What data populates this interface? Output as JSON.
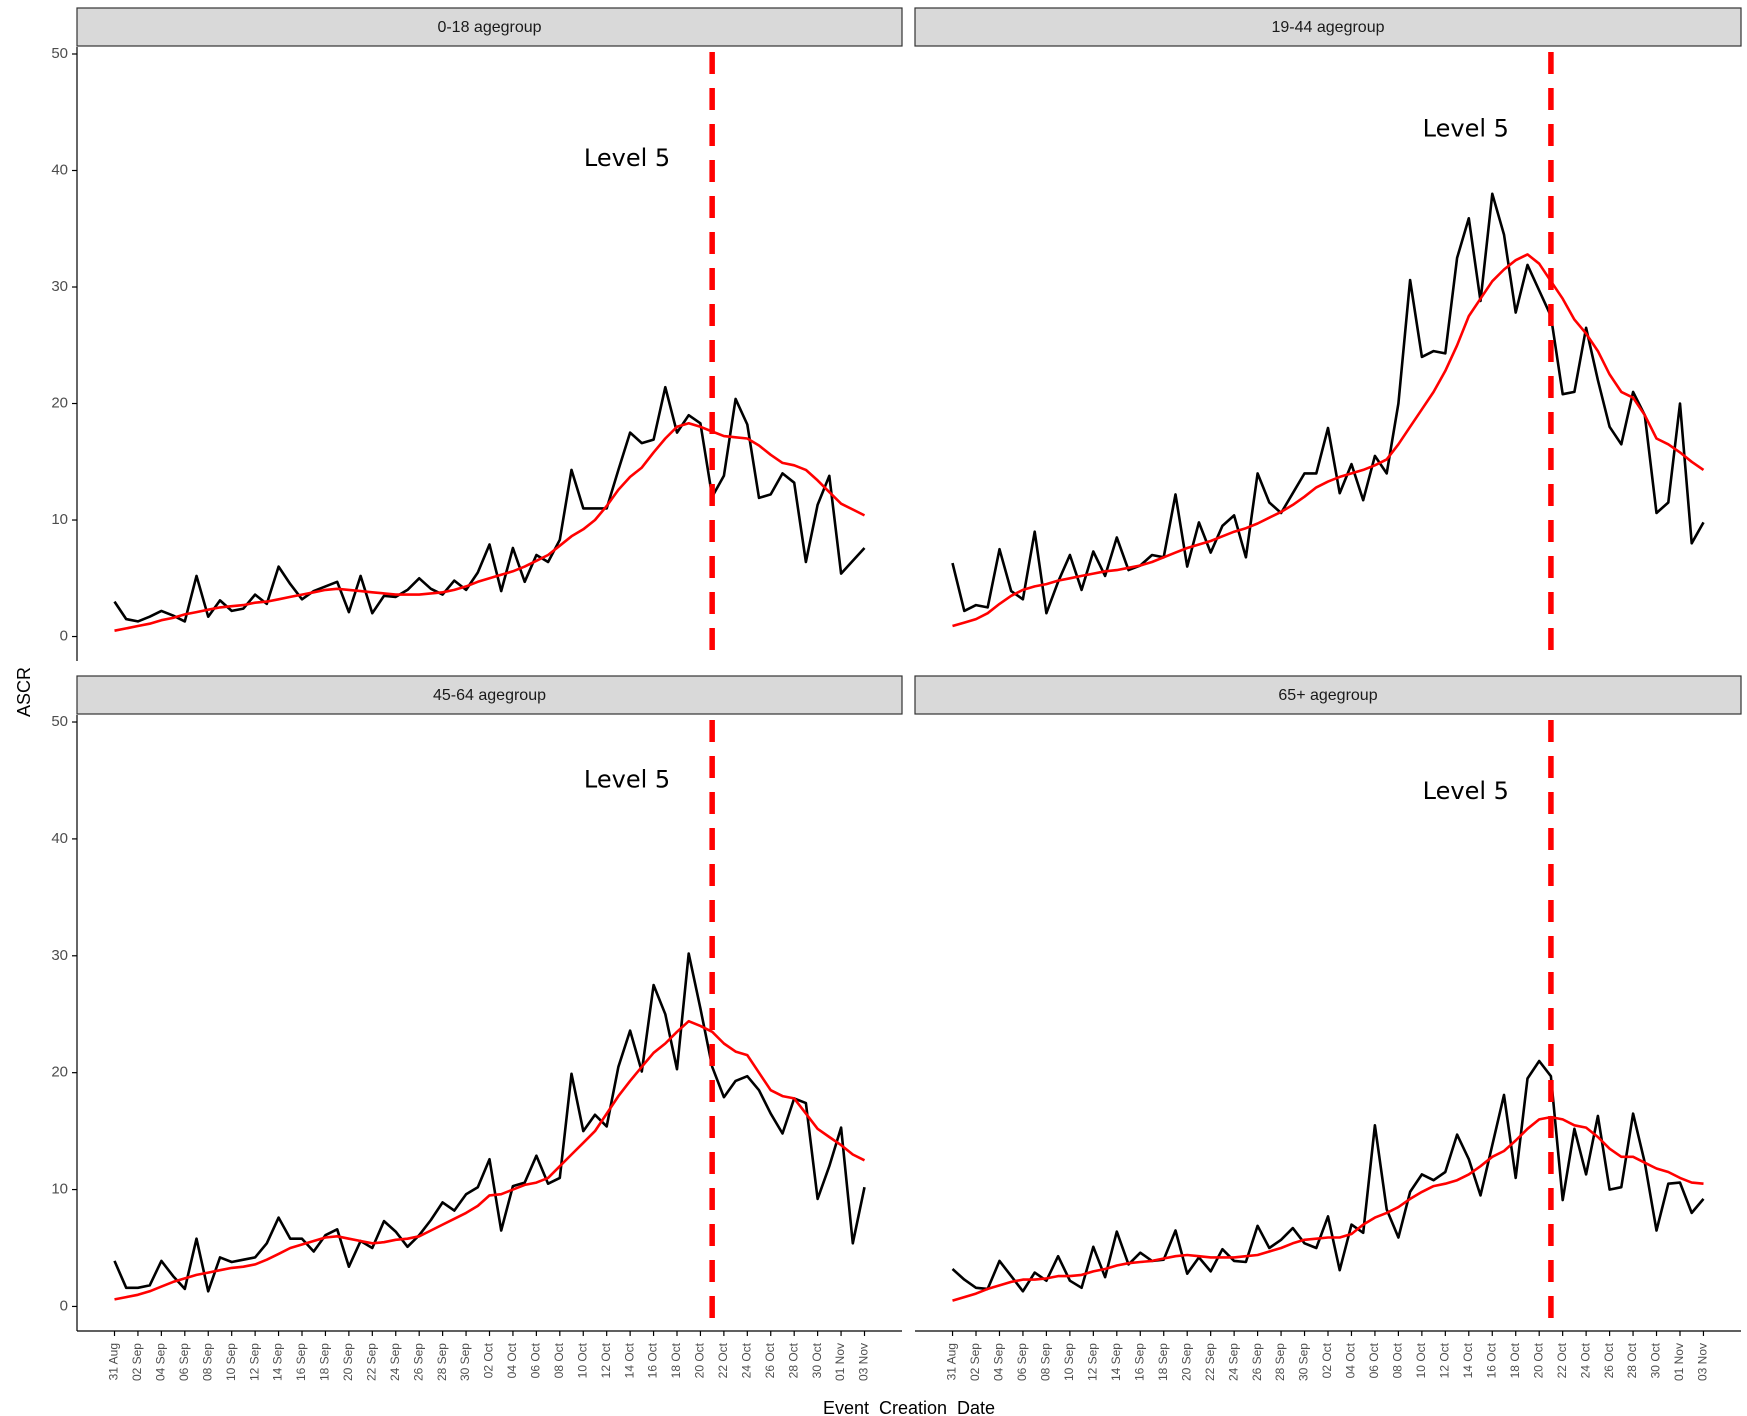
{
  "ylabel": "ASCR",
  "xlabel": "Event_Creation_Date",
  "chart_data": [
    {
      "type": "line",
      "title": "0-18 agegroup",
      "ylim": [
        -2.1,
        50.6
      ],
      "yticks": [
        0,
        10,
        20,
        30,
        40,
        50
      ],
      "vline_x": 51,
      "vline_color": "#ff0000",
      "annotation": {
        "text": "Level 5",
        "y": 41
      },
      "series": [
        {
          "color": "#000000",
          "values": [
            3.0,
            1.5,
            1.3,
            1.7,
            2.2,
            1.8,
            1.3,
            5.2,
            1.7,
            3.1,
            2.2,
            2.4,
            3.6,
            2.8,
            6.0,
            4.5,
            3.2,
            3.9,
            4.3,
            4.7,
            2.1,
            5.2,
            2.0,
            3.5,
            3.4,
            4.0,
            5.0,
            4.1,
            3.6,
            4.8,
            4.0,
            5.5,
            7.9,
            3.9,
            7.6,
            4.7,
            7.0,
            6.4,
            8.3,
            14.3,
            11.0,
            11.0,
            11.0,
            14.3,
            17.5,
            16.6,
            16.9,
            21.4,
            17.5,
            19.0,
            18.3,
            12.0,
            13.8,
            20.4,
            18.2,
            11.9,
            12.2,
            14.0,
            13.2,
            6.4,
            11.3,
            13.8,
            5.4,
            6.5,
            7.6
          ]
        },
        {
          "color": "#ff0000",
          "values": [
            0.5,
            0.7,
            0.9,
            1.1,
            1.4,
            1.6,
            1.9,
            2.1,
            2.3,
            2.5,
            2.6,
            2.7,
            2.9,
            3.0,
            3.2,
            3.4,
            3.6,
            3.8,
            4.0,
            4.1,
            4.0,
            3.9,
            3.8,
            3.7,
            3.6,
            3.6,
            3.6,
            3.7,
            3.8,
            4.0,
            4.3,
            4.7,
            5.0,
            5.3,
            5.6,
            6.0,
            6.5,
            7.0,
            7.8,
            8.6,
            9.2,
            10.0,
            11.2,
            12.6,
            13.7,
            14.5,
            15.8,
            17.0,
            18.0,
            18.3,
            18.0,
            17.6,
            17.2,
            17.1,
            17.0,
            16.4,
            15.6,
            14.9,
            14.7,
            14.3,
            13.4,
            12.4,
            11.4,
            10.9,
            10.4
          ]
        }
      ]
    },
    {
      "type": "line",
      "title": "19-44 agegroup",
      "ylim": [
        -2.1,
        50.6
      ],
      "vline_x": 51,
      "vline_color": "#ff0000",
      "annotation": {
        "text": "Level 5",
        "y": 43.5
      },
      "series": [
        {
          "color": "#000000",
          "values": [
            6.3,
            2.2,
            2.7,
            2.5,
            7.5,
            3.9,
            3.2,
            9.0,
            2.0,
            4.7,
            7.0,
            4.0,
            7.3,
            5.2,
            8.5,
            5.7,
            6.1,
            7.0,
            6.8,
            12.2,
            6.0,
            9.8,
            7.2,
            9.5,
            10.4,
            6.8,
            14.0,
            11.5,
            10.6,
            12.3,
            14.0,
            14.0,
            17.9,
            12.3,
            14.8,
            11.7,
            15.5,
            14.0,
            20.0,
            30.6,
            24.0,
            24.5,
            24.3,
            32.5,
            35.9,
            28.8,
            38.0,
            34.5,
            27.8,
            31.9,
            29.7,
            27.5,
            20.8,
            21.0,
            26.5,
            22.0,
            18.0,
            16.5,
            21.0,
            19.0,
            10.6,
            11.5,
            20.0,
            8.0,
            9.8
          ]
        },
        {
          "color": "#ff0000",
          "values": [
            0.9,
            1.2,
            1.5,
            2.0,
            2.8,
            3.5,
            4.0,
            4.3,
            4.5,
            4.8,
            5.0,
            5.2,
            5.4,
            5.6,
            5.7,
            5.9,
            6.1,
            6.4,
            6.8,
            7.2,
            7.6,
            7.9,
            8.2,
            8.6,
            9.0,
            9.3,
            9.7,
            10.2,
            10.7,
            11.3,
            12.0,
            12.8,
            13.3,
            13.7,
            14.0,
            14.3,
            14.7,
            15.2,
            16.5,
            18.0,
            19.5,
            21.0,
            22.8,
            25.0,
            27.5,
            29.0,
            30.5,
            31.5,
            32.3,
            32.8,
            32.0,
            30.5,
            29.0,
            27.2,
            26.0,
            24.5,
            22.5,
            21.0,
            20.5,
            19.0,
            17.0,
            16.5,
            15.8,
            15.0,
            14.3
          ]
        }
      ]
    },
    {
      "type": "line",
      "title": "45-64 agegroup",
      "ylim": [
        -2.1,
        50.6
      ],
      "yticks": [
        0,
        10,
        20,
        30,
        40,
        50
      ],
      "categories": [
        "31 Aug",
        null,
        "02 Sep",
        null,
        "04 Sep",
        null,
        "06 Sep",
        null,
        "08 Sep",
        null,
        "10 Sep",
        null,
        "12 Sep",
        null,
        "14 Sep",
        null,
        "16 Sep",
        null,
        "18 Sep",
        null,
        "20 Sep",
        null,
        "22 Sep",
        null,
        "24 Sep",
        null,
        "26 Sep",
        null,
        "28 Sep",
        null,
        "30 Sep",
        null,
        "02 Oct",
        null,
        "04 Oct",
        null,
        "06 Oct",
        null,
        "08 Oct",
        null,
        "10 Oct",
        null,
        "12 Oct",
        null,
        "14 Oct",
        null,
        "16 Oct",
        null,
        "18 Oct",
        null,
        "20 Oct",
        null,
        "22 Oct",
        null,
        "24 Oct",
        null,
        "26 Oct",
        null,
        "28 Oct",
        null,
        "30 Oct",
        null,
        "01 Nov",
        null,
        "03 Nov"
      ],
      "vline_x": 51,
      "vline_color": "#ff0000",
      "annotation": {
        "text": "Level 5",
        "y": 45
      },
      "series": [
        {
          "color": "#000000",
          "values": [
            3.9,
            1.6,
            1.6,
            1.8,
            3.9,
            2.6,
            1.5,
            5.8,
            1.3,
            4.2,
            3.8,
            4.0,
            4.2,
            5.4,
            7.6,
            5.8,
            5.8,
            4.7,
            6.1,
            6.6,
            3.4,
            5.6,
            5.0,
            7.3,
            6.4,
            5.1,
            6.1,
            7.4,
            8.9,
            8.2,
            9.6,
            10.2,
            12.6,
            6.5,
            10.3,
            10.6,
            12.9,
            10.5,
            11.0,
            19.9,
            15.0,
            16.4,
            15.4,
            20.5,
            23.6,
            20.1,
            27.5,
            25.0,
            20.3,
            30.2,
            25.5,
            20.5,
            17.9,
            19.3,
            19.7,
            18.5,
            16.5,
            14.8,
            17.8,
            17.4,
            9.2,
            12.0,
            15.3,
            5.4,
            10.2
          ]
        },
        {
          "color": "#ff0000",
          "values": [
            0.6,
            0.8,
            1.0,
            1.3,
            1.7,
            2.1,
            2.4,
            2.7,
            2.9,
            3.1,
            3.3,
            3.4,
            3.6,
            4.0,
            4.5,
            5.0,
            5.3,
            5.6,
            5.9,
            6.0,
            5.8,
            5.6,
            5.4,
            5.5,
            5.7,
            5.8,
            6.0,
            6.5,
            7.0,
            7.5,
            8.0,
            8.6,
            9.5,
            9.6,
            10.0,
            10.4,
            10.6,
            11.0,
            12.0,
            13.0,
            14.0,
            15.0,
            16.5,
            18.0,
            19.3,
            20.5,
            21.7,
            22.5,
            23.5,
            24.4,
            24.0,
            23.5,
            22.5,
            21.8,
            21.5,
            20.0,
            18.5,
            18.0,
            17.8,
            16.5,
            15.2,
            14.5,
            13.8,
            13.0,
            12.5
          ]
        }
      ]
    },
    {
      "type": "line",
      "title": "65+ agegroup",
      "ylim": [
        -2.1,
        50.6
      ],
      "categories": [
        "31 Aug",
        null,
        "02 Sep",
        null,
        "04 Sep",
        null,
        "06 Sep",
        null,
        "08 Sep",
        null,
        "10 Sep",
        null,
        "12 Sep",
        null,
        "14 Sep",
        null,
        "16 Sep",
        null,
        "18 Sep",
        null,
        "20 Sep",
        null,
        "22 Sep",
        null,
        "24 Sep",
        null,
        "26 Sep",
        null,
        "28 Sep",
        null,
        "30 Sep",
        null,
        "02 Oct",
        null,
        "04 Oct",
        null,
        "06 Oct",
        null,
        "08 Oct",
        null,
        "10 Oct",
        null,
        "12 Oct",
        null,
        "14 Oct",
        null,
        "16 Oct",
        null,
        "18 Oct",
        null,
        "20 Oct",
        null,
        "22 Oct",
        null,
        "24 Oct",
        null,
        "26 Oct",
        null,
        "28 Oct",
        null,
        "30 Oct",
        null,
        "01 Nov",
        null,
        "03 Nov"
      ],
      "vline_x": 51,
      "vline_color": "#ff0000",
      "annotation": {
        "text": "Level 5",
        "y": 44
      },
      "series": [
        {
          "color": "#000000",
          "values": [
            3.2,
            2.3,
            1.6,
            1.5,
            3.9,
            2.6,
            1.3,
            2.9,
            2.2,
            4.3,
            2.2,
            1.6,
            5.1,
            2.5,
            6.4,
            3.6,
            4.6,
            3.9,
            4.0,
            6.5,
            2.8,
            4.2,
            3.0,
            4.9,
            3.9,
            3.8,
            6.9,
            5.0,
            5.7,
            6.7,
            5.4,
            5.0,
            7.7,
            3.1,
            7.0,
            6.3,
            15.5,
            8.3,
            5.9,
            9.8,
            11.3,
            10.8,
            11.5,
            14.7,
            12.6,
            9.5,
            13.8,
            18.1,
            11.0,
            19.5,
            21.0,
            19.7,
            9.1,
            15.2,
            11.3,
            16.3,
            10.0,
            10.2,
            16.5,
            12.3,
            6.5,
            10.5,
            10.6,
            8.0,
            9.2
          ]
        },
        {
          "color": "#ff0000",
          "values": [
            0.5,
            0.8,
            1.1,
            1.5,
            1.8,
            2.1,
            2.3,
            2.3,
            2.4,
            2.6,
            2.6,
            2.7,
            3.0,
            3.2,
            3.5,
            3.7,
            3.8,
            3.9,
            4.1,
            4.3,
            4.4,
            4.3,
            4.2,
            4.2,
            4.2,
            4.3,
            4.4,
            4.7,
            5.0,
            5.4,
            5.7,
            5.8,
            5.9,
            5.9,
            6.2,
            7.0,
            7.6,
            8.0,
            8.5,
            9.2,
            9.8,
            10.3,
            10.5,
            10.8,
            11.3,
            12.0,
            12.8,
            13.3,
            14.2,
            15.2,
            16.0,
            16.2,
            16.0,
            15.5,
            15.3,
            14.5,
            13.5,
            12.8,
            12.8,
            12.3,
            11.8,
            11.5,
            11.0,
            10.6,
            10.5
          ]
        }
      ]
    }
  ]
}
